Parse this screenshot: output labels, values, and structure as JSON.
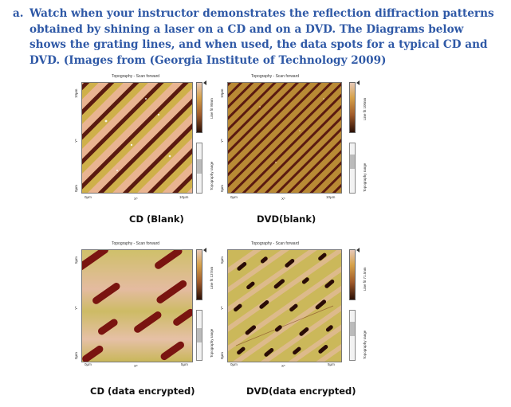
{
  "instructions": {
    "letter": "a.",
    "text": "Watch when your instructor demonstrates the reflection diffraction patterns obtained by shining a laser on a CD and on a DVD.  The Diagrams below shows the grating lines, and when used, the data spots for a typical CD and DVD. (Images from (Georgia Institute of Technology 2009)"
  },
  "panels": [
    {
      "title": "Topography - Scan forward",
      "y_top": "10µm",
      "y_axis": "Y*",
      "y_bottom": "0µm",
      "x_left": "0µm",
      "x_axis": "X*",
      "x_right": "10µm",
      "line_label": "Line fit 90nm",
      "range_label": "Topography range",
      "caption": "CD (Blank)"
    },
    {
      "title": "Topography - Scan forward",
      "y_top": "10µm",
      "y_axis": "Y*",
      "y_bottom": "0µm",
      "x_left": "0µm",
      "x_axis": "X*",
      "x_right": "10µm",
      "line_label": "Line fit 100nm",
      "range_label": "Topography range",
      "caption": "DVD(blank)"
    },
    {
      "title": "Topography - Scan forward",
      "y_top": "5µm",
      "y_axis": "Y*",
      "y_bottom": "0µm",
      "x_left": "0µm",
      "x_axis": "X*",
      "x_right": "5µm",
      "line_label": "Line fit 137nm",
      "range_label": "Topography range",
      "caption": "CD (data encrypted)"
    },
    {
      "title": "Topography - Scan forward",
      "y_top": "5µm",
      "y_axis": "Y*",
      "y_bottom": "0µm",
      "x_left": "0µm",
      "x_axis": "X*",
      "x_right": "5µm",
      "line_label": "Line fit 71.5nm",
      "range_label": "Topography range",
      "caption": "DVD(data encrypted)"
    }
  ],
  "colors": {
    "instruction_text": "#2e58a6",
    "surface_light": "#e7b08a",
    "surface_mid": "#c8a845",
    "groove_dark": "#5a1a10",
    "pit_dark": "#7a1410"
  }
}
